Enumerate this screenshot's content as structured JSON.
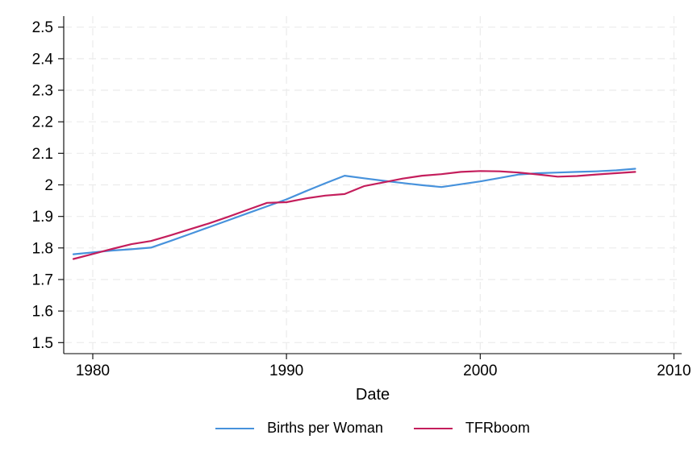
{
  "chart_data": {
    "type": "line",
    "title": "",
    "xlabel": "Date",
    "ylabel": "",
    "xlim": [
      1978.5,
      2010.4
    ],
    "ylim": [
      1.465,
      2.535
    ],
    "x_ticks": {
      "values": [
        1980,
        1990,
        2000,
        2010
      ],
      "labels": [
        "1980",
        "1990",
        "2000",
        "2010"
      ]
    },
    "y_ticks": {
      "values": [
        1.5,
        1.6,
        1.7,
        1.8,
        1.9,
        2.0,
        2.1,
        2.2,
        2.3,
        2.4,
        2.5
      ],
      "labels": [
        "1.5",
        "1.6",
        "1.7",
        "1.8",
        "1.9",
        "2",
        "2.1",
        "2.2",
        "2.3",
        "2.4",
        "2.5"
      ]
    },
    "grid": "dashed light-gray horizontal and vertical at major ticks",
    "legend_position": "bottom-center",
    "x": [
      1979,
      1980,
      1981,
      1982,
      1983,
      1984,
      1985,
      1986,
      1987,
      1988,
      1989,
      1990,
      1991,
      1992,
      1993,
      1994,
      1995,
      1996,
      1997,
      1998,
      1999,
      2000,
      2001,
      2002,
      2003,
      2004,
      2005,
      2006,
      2007,
      2008
    ],
    "series": [
      {
        "name": "Births per Woman",
        "color": "#4792dc",
        "values": [
          1.78,
          1.786,
          1.792,
          1.796,
          1.801,
          1.822,
          1.844,
          1.866,
          1.888,
          1.91,
          1.932,
          1.954,
          1.98,
          2.005,
          2.029,
          2.021,
          2.013,
          2.006,
          1.999,
          1.993,
          2.002,
          2.011,
          2.022,
          2.033,
          2.037,
          2.039,
          2.041,
          2.043,
          2.046,
          2.051
        ]
      },
      {
        "name": "TFRboom",
        "color": "#c41e5c",
        "values": [
          1.765,
          1.781,
          1.797,
          1.812,
          1.822,
          1.84,
          1.859,
          1.878,
          1.899,
          1.921,
          1.943,
          1.945,
          1.957,
          1.966,
          1.971,
          1.996,
          2.008,
          2.02,
          2.029,
          2.034,
          2.041,
          2.044,
          2.043,
          2.039,
          2.033,
          2.026,
          2.028,
          2.033,
          2.037,
          2.041
        ]
      }
    ],
    "style": {
      "axis_color": "#000000",
      "grid_color": "#ebebeb",
      "background_color": "#ffffff",
      "line_width": 2.2
    }
  }
}
